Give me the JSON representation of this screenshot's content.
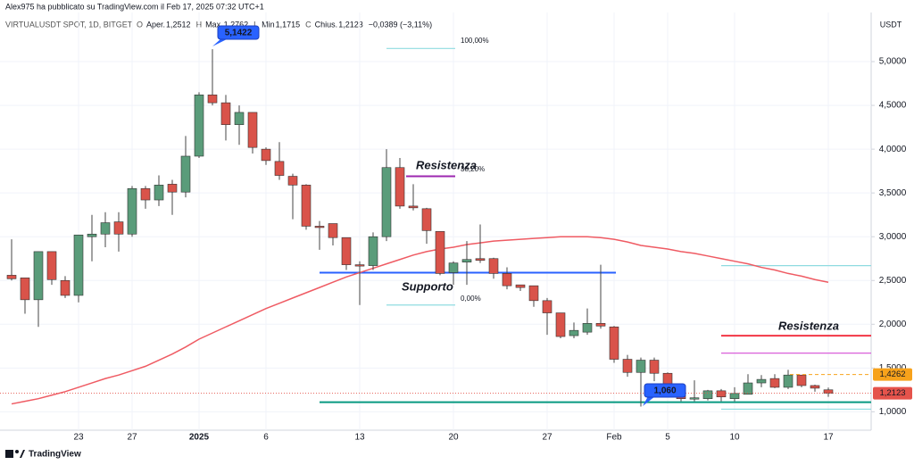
{
  "header": {
    "publisher": "Alex975 ha pubblicato su TradingView.com il Feb 17, 2025 07:32 UTC+1",
    "symbol": "VIRTUALUSDT SPOT, 1D, BITGET",
    "ohlc": [
      {
        "key": "O",
        "name": "Aper.",
        "value": "1,2512"
      },
      {
        "key": "H",
        "name": "Max.",
        "value": "1,2762"
      },
      {
        "key": "L",
        "name": "Min",
        "value": "1,1715"
      },
      {
        "key": "C",
        "name": "Chius.",
        "value": "1,2123"
      }
    ],
    "change": "−0,0389 (−3,11%)"
  },
  "chart_data": {
    "type": "candlestick",
    "currency": "USDT",
    "categories": [
      null,
      null,
      null,
      null,
      null,
      "23",
      null,
      null,
      null,
      "27",
      null,
      null,
      null,
      null,
      "2025",
      null,
      null,
      null,
      null,
      "6",
      null,
      null,
      null,
      null,
      null,
      null,
      "13",
      null,
      null,
      null,
      null,
      null,
      null,
      "20",
      null,
      null,
      null,
      null,
      null,
      null,
      "27",
      null,
      null,
      null,
      null,
      "Feb",
      null,
      null,
      null,
      "5",
      null,
      null,
      null,
      null,
      "10",
      null,
      null,
      null,
      null,
      null,
      null,
      "17"
    ],
    "open": [
      2.56,
      2.53,
      2.28,
      2.83,
      2.5,
      2.33,
      3.0,
      3.03,
      3.17,
      3.03,
      3.55,
      3.42,
      3.6,
      3.51,
      3.92,
      4.62,
      4.53,
      4.28,
      4.42,
      4.0,
      3.86,
      3.69,
      3.59,
      3.12,
      3.15,
      2.99,
      2.68,
      2.67,
      3.0,
      3.79,
      3.35,
      3.32,
      3.06,
      2.59,
      2.71,
      2.75,
      2.75,
      2.58,
      2.45,
      2.44,
      2.27,
      2.13,
      1.87,
      1.91,
      2.01,
      1.97,
      1.6,
      1.45,
      1.59,
      1.44,
      1.3,
      1.15,
      1.15,
      1.24,
      1.15,
      1.2,
      1.33,
      1.38,
      1.28,
      1.42,
      1.3,
      1.2512
    ],
    "high": [
      2.97,
      2.53,
      2.83,
      2.83,
      2.55,
      3.02,
      3.25,
      3.28,
      3.28,
      3.58,
      3.58,
      3.7,
      3.65,
      4.15,
      4.65,
      5.1422,
      4.62,
      4.5,
      4.42,
      4.02,
      4.08,
      3.72,
      3.6,
      3.18,
      3.15,
      2.99,
      2.72,
      3.05,
      4.0,
      3.9,
      3.6,
      3.33,
      3.06,
      2.72,
      2.95,
      3.14,
      2.76,
      2.65,
      2.45,
      2.44,
      2.3,
      2.13,
      2.02,
      2.18,
      2.68,
      1.98,
      1.65,
      1.62,
      1.62,
      1.45,
      1.32,
      1.36,
      1.25,
      1.26,
      1.28,
      1.43,
      1.42,
      1.43,
      1.48,
      1.42,
      1.31,
      1.2762
    ],
    "low": [
      2.5,
      2.12,
      1.97,
      2.45,
      2.3,
      2.25,
      2.72,
      2.88,
      2.83,
      3.0,
      3.32,
      3.35,
      3.25,
      3.45,
      3.9,
      4.5,
      4.1,
      4.05,
      3.95,
      3.82,
      3.65,
      3.2,
      3.08,
      2.85,
      2.9,
      2.62,
      2.22,
      2.62,
      2.95,
      3.32,
      3.3,
      2.92,
      2.56,
      2.45,
      2.45,
      2.7,
      2.52,
      2.4,
      2.38,
      2.2,
      1.88,
      1.84,
      1.84,
      1.88,
      1.95,
      1.56,
      1.4,
      1.0601,
      1.35,
      1.2,
      1.12,
      1.12,
      1.13,
      1.12,
      1.12,
      1.2,
      1.28,
      1.27,
      1.26,
      1.28,
      1.23,
      1.1715
    ],
    "close": [
      2.52,
      2.28,
      2.83,
      2.51,
      2.33,
      3.02,
      3.03,
      3.16,
      3.03,
      3.55,
      3.42,
      3.59,
      3.51,
      3.92,
      4.62,
      4.53,
      4.28,
      4.42,
      4.02,
      3.87,
      3.7,
      3.59,
      3.12,
      3.11,
      2.99,
      2.68,
      2.67,
      3.0,
      3.79,
      3.35,
      3.33,
      3.07,
      2.58,
      2.7,
      2.74,
      2.73,
      2.58,
      2.44,
      2.42,
      2.27,
      2.13,
      1.86,
      1.93,
      2.01,
      1.98,
      1.6,
      1.45,
      1.59,
      1.44,
      1.3,
      1.15,
      1.16,
      1.24,
      1.17,
      1.21,
      1.33,
      1.37,
      1.28,
      1.42,
      1.3,
      1.27,
      1.2123
    ],
    "up_color": "#5a9c7a",
    "down_color": "#d9534a",
    "ma": {
      "color": "#ef5b63",
      "values": [
        1.09,
        1.12,
        1.15,
        1.19,
        1.23,
        1.28,
        1.33,
        1.38,
        1.42,
        1.47,
        1.52,
        1.59,
        1.66,
        1.74,
        1.83,
        1.9,
        1.97,
        2.04,
        2.11,
        2.18,
        2.24,
        2.3,
        2.36,
        2.42,
        2.48,
        2.54,
        2.59,
        2.64,
        2.69,
        2.74,
        2.79,
        2.83,
        2.86,
        2.88,
        2.91,
        2.93,
        2.95,
        2.96,
        2.97,
        2.98,
        2.99,
        3.0,
        3.0,
        3.0,
        2.99,
        2.97,
        2.94,
        2.9,
        2.88,
        2.86,
        2.83,
        2.81,
        2.78,
        2.75,
        2.72,
        2.69,
        2.65,
        2.62,
        2.58,
        2.55,
        2.51,
        2.48
      ]
    },
    "ylim": [
      0.79,
      5.5
    ],
    "yticks": [
      {
        "value": 1,
        "label": "1,0000"
      },
      {
        "value": 1.5,
        "label": "1,5000"
      },
      {
        "value": 2,
        "label": "2,0000"
      },
      {
        "value": 2.5,
        "label": "2,5000"
      },
      {
        "value": 3,
        "label": "3,0000"
      },
      {
        "value": 3.5,
        "label": "3,5000"
      },
      {
        "value": 4,
        "label": "4,0000"
      },
      {
        "value": 4.5,
        "label": "4,5000"
      },
      {
        "value": 5,
        "label": "5,0000"
      }
    ],
    "grid": true,
    "levels": [
      {
        "label": "Resistenza",
        "value": 3.69,
        "color": "#9c27b0"
      },
      {
        "label": "Supporto",
        "value": 2.59,
        "color": "#2962ff"
      },
      {
        "value": 1.11,
        "color": "#089981"
      },
      {
        "label": "Resistenza",
        "value": 1.87,
        "color": "#f23645"
      },
      {
        "value": 1.67,
        "color": "#d64bd6"
      },
      {
        "value": 2.67,
        "color": "#8fdbe0"
      },
      {
        "value": 1.03,
        "color": "#8fdbe0"
      },
      {
        "value": 5.15,
        "color": "#8fdbe0"
      },
      {
        "value": 2.22,
        "color": "#8fdbe0"
      }
    ],
    "annotations": [
      "5,1422",
      "1,060",
      "100,00%",
      "38,20%",
      "0,00%"
    ],
    "price_tags": [
      {
        "value": 1.4262,
        "label": "1,4262",
        "color": "#f7a21b"
      },
      {
        "value": 1.2123,
        "label": "1,2123",
        "color": "#e5534b"
      }
    ]
  },
  "footer": {
    "brand": "TradingView"
  }
}
